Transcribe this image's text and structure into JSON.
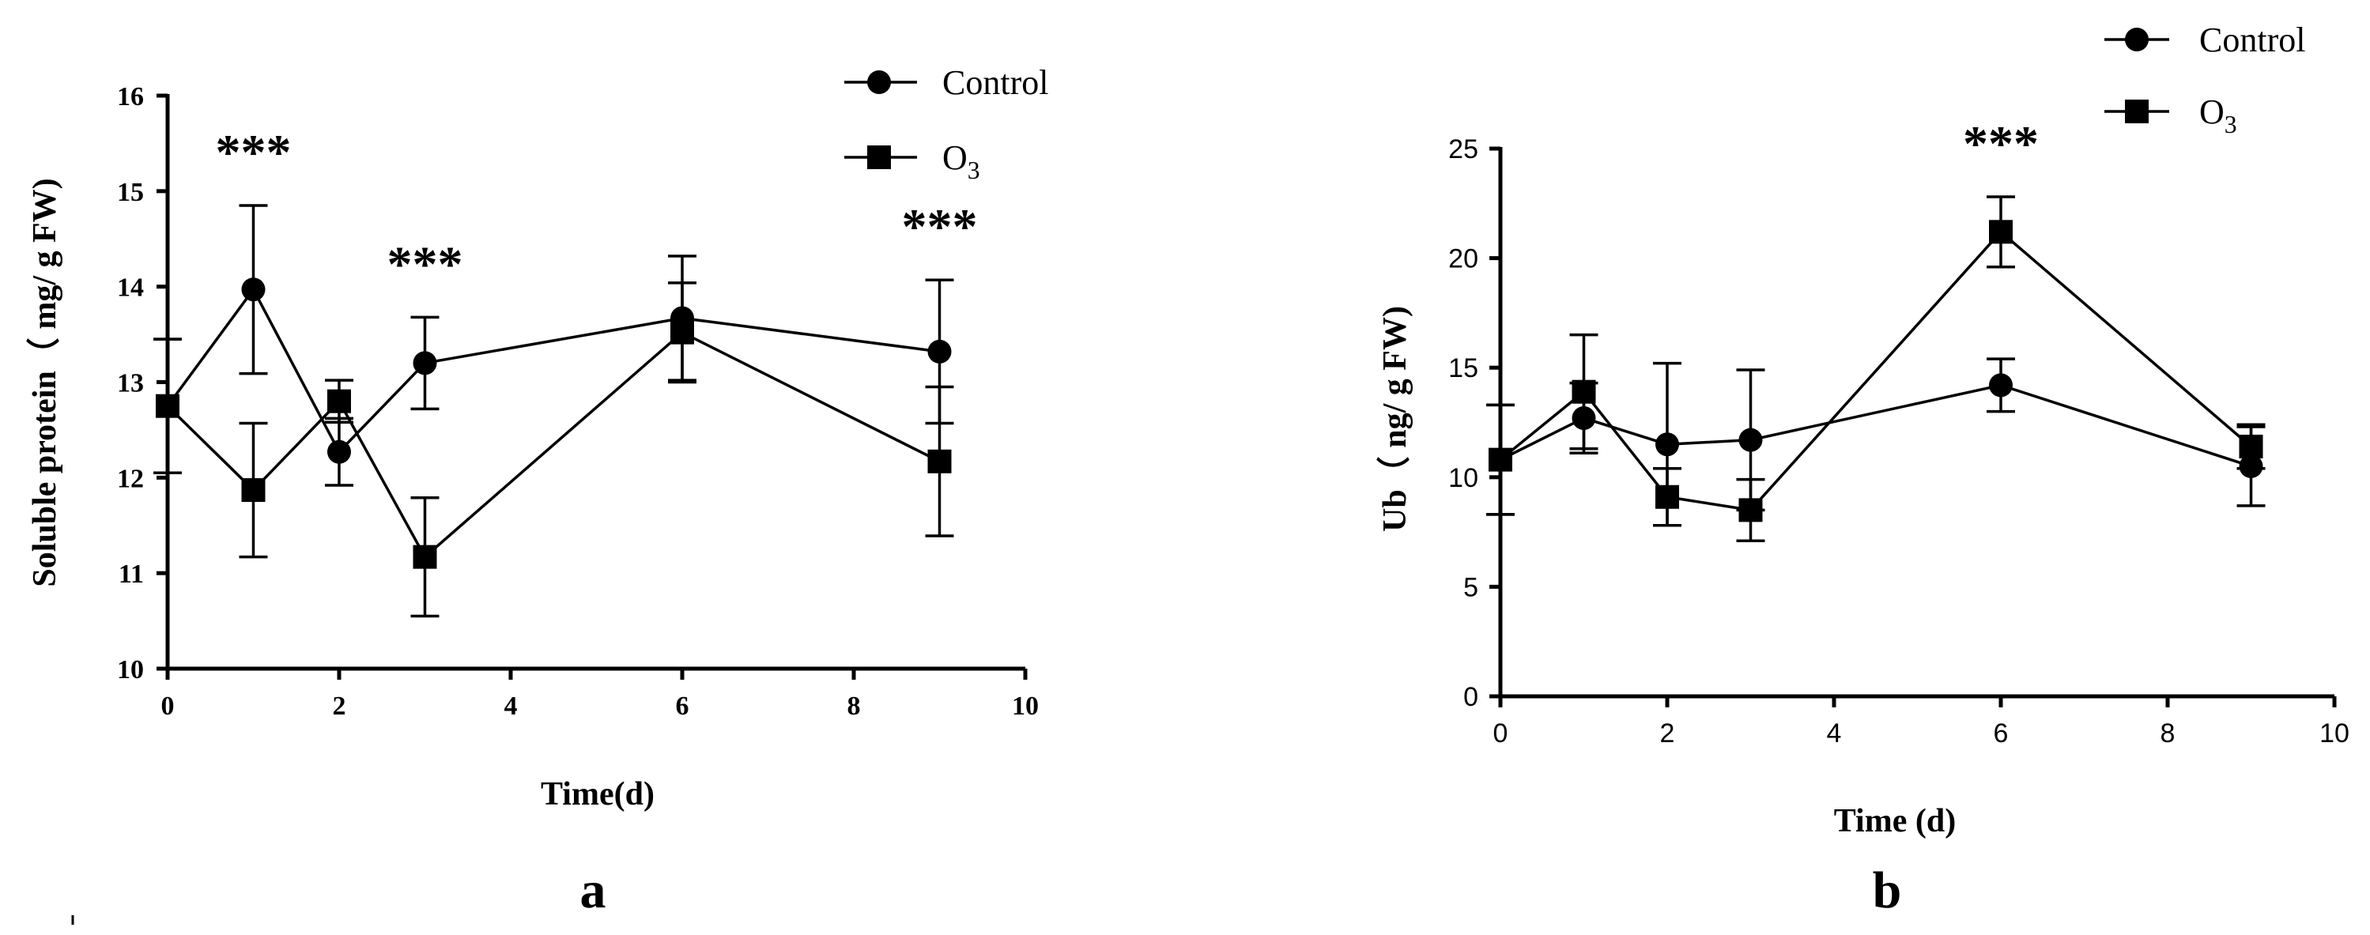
{
  "chart_data": [
    {
      "panel_label": "a",
      "type": "line",
      "title": "",
      "xlabel": "Time(d)",
      "ylabel": "Soluble protein（ mg/ g FW)",
      "xlim": [
        0,
        10
      ],
      "ylim": [
        10,
        16
      ],
      "xticks": [
        0,
        2,
        4,
        6,
        8,
        10
      ],
      "yticks": [
        10,
        11,
        12,
        13,
        14,
        15,
        16
      ],
      "x": [
        0,
        1,
        2,
        3,
        6,
        9
      ],
      "series": [
        {
          "name": "Control",
          "marker": "circle",
          "values": [
            12.75,
            13.97,
            12.27,
            13.2,
            13.67,
            13.32
          ],
          "errors": [
            0.7,
            0.88,
            0.35,
            0.48,
            0.65,
            0.75
          ]
        },
        {
          "name": "O",
          "name_subscript": "3",
          "marker": "square",
          "values": [
            12.75,
            11.87,
            12.8,
            11.17,
            13.52,
            12.17
          ],
          "errors": [
            0.7,
            0.7,
            0.22,
            0.62,
            0.52,
            0.78
          ]
        }
      ],
      "legend": {
        "placement": "top-right",
        "entries": [
          {
            "text": "Control",
            "sub": ""
          },
          {
            "text": "O",
            "sub": "3"
          }
        ]
      },
      "annotations": [
        {
          "x": 1,
          "text": "***"
        },
        {
          "x": 3,
          "text": "***"
        },
        {
          "x": 9,
          "text": "***"
        }
      ]
    },
    {
      "panel_label": "b",
      "type": "line",
      "title": "",
      "xlabel": "Time (d)",
      "ylabel": "Ub（ ng/ g FW)",
      "xlim": [
        0,
        10
      ],
      "ylim": [
        0,
        25
      ],
      "xticks": [
        0,
        2,
        4,
        6,
        8,
        10
      ],
      "yticks": [
        0,
        5,
        10,
        15,
        20,
        25
      ],
      "x": [
        0,
        1,
        2,
        3,
        6,
        9
      ],
      "series": [
        {
          "name": "Control",
          "marker": "circle",
          "values": [
            10.8,
            12.7,
            11.5,
            11.7,
            14.2,
            10.5
          ],
          "errors": [
            2.5,
            1.6,
            3.7,
            3.2,
            1.2,
            1.8
          ]
        },
        {
          "name": "O",
          "name_subscript": "3",
          "marker": "square",
          "values": [
            10.8,
            13.9,
            9.1,
            8.5,
            21.2,
            11.4
          ],
          "errors": [
            2.5,
            2.6,
            1.3,
            1.4,
            1.6,
            1.0
          ]
        }
      ],
      "legend": {
        "placement": "top-right",
        "entries": [
          {
            "text": "Control",
            "sub": ""
          },
          {
            "text": "O",
            "sub": "3"
          }
        ]
      },
      "annotations": [
        {
          "x": 6,
          "text": "***"
        }
      ]
    }
  ]
}
